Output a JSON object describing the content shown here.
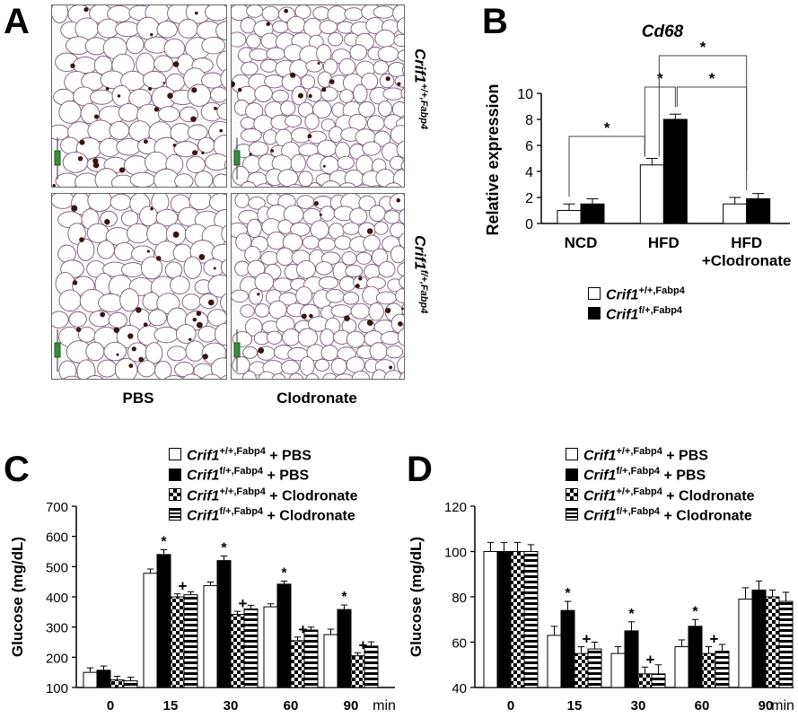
{
  "panels": {
    "a": "A",
    "b": "B",
    "c": "C",
    "d": "D"
  },
  "panel_a": {
    "col_labels": [
      "PBS",
      "Clodronate"
    ],
    "row_labels": [
      {
        "gene": "Crif1",
        "sup": "+/+,Fabp4"
      },
      {
        "gene": "Crif1",
        "sup": "f/+,Fabp4"
      }
    ]
  },
  "legend_b": [
    {
      "gene": "Crif1",
      "sup": "+/+,Fabp4",
      "suffix": "",
      "pattern": "white"
    },
    {
      "gene": "Crif1",
      "sup": "f/+,Fabp4",
      "suffix": "",
      "pattern": "black"
    }
  ],
  "legend_cd": [
    {
      "gene": "Crif1",
      "sup": "+/+,Fabp4",
      "suffix": " + PBS",
      "pattern": "white"
    },
    {
      "gene": "Crif1",
      "sup": "f/+,Fabp4",
      "suffix": " + PBS",
      "pattern": "black"
    },
    {
      "gene": "Crif1",
      "sup": "+/+,Fabp4",
      "suffix": " + Clodronate",
      "pattern": "checker"
    },
    {
      "gene": "Crif1",
      "sup": "f/+,Fabp4",
      "suffix": " + Clodronate",
      "pattern": "hstripe"
    }
  ],
  "chart_data": [
    {
      "panel": "B",
      "type": "bar",
      "title": "Cd68",
      "ylabel": "Relative expression",
      "ylim": [
        0,
        10
      ],
      "yticks": [
        0,
        2,
        4,
        6,
        8,
        10
      ],
      "categories": [
        "NCD",
        "HFD",
        "HFD\n+Clodronate"
      ],
      "series": [
        {
          "name": "Crif1 +/+,Fabp4",
          "values": [
            1.0,
            4.5,
            1.5
          ],
          "errors": [
            0.5,
            0.5,
            0.5
          ]
        },
        {
          "name": "Crif1 f/+,Fabp4",
          "values": [
            1.5,
            8.0,
            1.9
          ],
          "errors": [
            0.4,
            0.4,
            0.4
          ]
        }
      ],
      "significance": "*"
    },
    {
      "panel": "C",
      "type": "bar",
      "ylabel": "Glucose (mg/dL)",
      "xunit": "min",
      "ylim": [
        100,
        700
      ],
      "yticks": [
        100,
        200,
        300,
        400,
        500,
        600,
        700
      ],
      "categories": [
        "0",
        "15",
        "30",
        "60",
        "90"
      ],
      "series": [
        {
          "name": "Crif1 +/+,Fabp4 + PBS",
          "values": [
            150,
            478,
            437,
            367,
            275
          ],
          "errors": [
            15,
            14,
            12,
            10,
            18
          ]
        },
        {
          "name": "Crif1 f/+,Fabp4 + PBS",
          "values": [
            157,
            540,
            520,
            442,
            358
          ],
          "errors": [
            14,
            16,
            15,
            10,
            15
          ]
        },
        {
          "name": "Crif1 +/+,Fabp4 + Clodronate",
          "values": [
            125,
            400,
            342,
            255,
            205
          ],
          "errors": [
            12,
            10,
            10,
            12,
            10
          ]
        },
        {
          "name": "Crif1 f/+,Fabp4 + Clodronate",
          "values": [
            122,
            407,
            360,
            290,
            237
          ],
          "errors": [
            12,
            10,
            12,
            10,
            14
          ]
        }
      ],
      "annotations": [
        {
          "category": "15",
          "marks": [
            "*",
            "+"
          ]
        },
        {
          "category": "30",
          "marks": [
            "*",
            "+"
          ]
        },
        {
          "category": "60",
          "marks": [
            "*",
            "+"
          ]
        },
        {
          "category": "90",
          "marks": [
            "*",
            "+"
          ]
        }
      ]
    },
    {
      "panel": "D",
      "type": "bar",
      "ylabel": "Glucose (mg/dL)",
      "xunit": "min",
      "ylim": [
        40,
        120
      ],
      "yticks": [
        40,
        60,
        80,
        100,
        120
      ],
      "categories": [
        "0",
        "15",
        "30",
        "60",
        "90"
      ],
      "series": [
        {
          "name": "Crif1 +/+,Fabp4 + PBS",
          "values": [
            100,
            63,
            55,
            58,
            79
          ],
          "errors": [
            4,
            4,
            3,
            3,
            5
          ]
        },
        {
          "name": "Crif1 f/+,Fabp4 + PBS",
          "values": [
            100,
            74,
            65,
            67,
            83
          ],
          "errors": [
            4,
            4,
            4,
            3,
            4
          ]
        },
        {
          "name": "Crif1 +/+,Fabp4 + Clodronate",
          "values": [
            100,
            55,
            46,
            55,
            80
          ],
          "errors": [
            4,
            3,
            3,
            3,
            3
          ]
        },
        {
          "name": "Crif1 f/+,Fabp4 + Clodronate",
          "values": [
            100,
            57,
            46,
            56,
            78
          ],
          "errors": [
            3,
            3,
            4,
            3,
            4
          ]
        }
      ],
      "annotations": [
        {
          "category": "15",
          "marks": [
            "*",
            "+"
          ]
        },
        {
          "category": "30",
          "marks": [
            "*",
            "+"
          ]
        },
        {
          "category": "60",
          "marks": [
            "*",
            "+"
          ]
        }
      ]
    }
  ]
}
